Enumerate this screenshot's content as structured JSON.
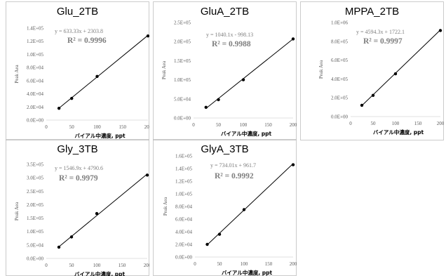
{
  "chart_data": [
    {
      "type": "scatter",
      "title": "Glu_2TB",
      "xlabel": "バイアル中濃度, ppt",
      "ylabel": "Peak Aea",
      "xlim": [
        0,
        200
      ],
      "ylim": [
        0,
        140000
      ],
      "x_ticks": [
        "0",
        "50",
        "100",
        "150",
        "200"
      ],
      "y_ticks": [
        "0.0E+00",
        "2.0E+04",
        "4.0E+04",
        "6.0E+04",
        "8.0E+04",
        "1.0E+05",
        "1.2E+05",
        "1.4E+05"
      ],
      "equation": "y = 633.33x + 2303.8",
      "r2_label": "R² = 0.9996",
      "trendline": {
        "slope": 633.33,
        "intercept": 2303.8
      },
      "series": [
        {
          "x": [
            25,
            50,
            100,
            200
          ],
          "y": [
            18000,
            33000,
            66500,
            128000
          ]
        }
      ]
    },
    {
      "type": "scatter",
      "title": "GluA_2TB",
      "xlabel": "バイアル中濃度, ppt",
      "ylabel": "Peak Aea",
      "xlim": [
        0,
        200
      ],
      "ylim": [
        0,
        250000
      ],
      "x_ticks": [
        "0",
        "50",
        "100",
        "150",
        "200"
      ],
      "y_ticks": [
        "0.0E+00",
        "5.0E+04",
        "1.0E+05",
        "1.5E+05",
        "2.0E+05",
        "2.5E+05"
      ],
      "equation": "y = 1040.1x - 998.13",
      "r2_label": "R² = 0.9988",
      "trendline": {
        "slope": 1040.1,
        "intercept": -998.13
      },
      "series": [
        {
          "x": [
            25,
            50,
            100,
            200
          ],
          "y": [
            28000,
            48000,
            100000,
            207000
          ]
        }
      ]
    },
    {
      "type": "scatter",
      "title": "MPPA_2TB",
      "xlabel": "バイアル中濃度, ppt",
      "ylabel": "Peak Aea",
      "xlim": [
        0,
        200
      ],
      "ylim": [
        0,
        1000000
      ],
      "x_ticks": [
        "0",
        "50",
        "100",
        "150",
        "200"
      ],
      "y_ticks": [
        "0.0E+00",
        "2.0E+05",
        "4.0E+05",
        "6.0E+05",
        "8.0E+05",
        "1.0E+06"
      ],
      "equation": "y = 4594.3x + 1722.1",
      "r2_label": "R² = 0.9997",
      "trendline": {
        "slope": 4594.3,
        "intercept": 1722.1
      },
      "series": [
        {
          "x": [
            25,
            50,
            100,
            200
          ],
          "y": [
            120000,
            225000,
            455000,
            915000
          ]
        }
      ]
    },
    {
      "type": "scatter",
      "title": "Gly_3TB",
      "xlabel": "バイアル中濃度, ppt",
      "ylabel": "Peak Aea",
      "xlim": [
        0,
        200
      ],
      "ylim": [
        0,
        350000
      ],
      "x_ticks": [
        "0",
        "50",
        "100",
        "150",
        "200"
      ],
      "y_ticks": [
        "0.0E+00",
        "5.0E+04",
        "1.0E+05",
        "1.5E+05",
        "2.0E+05",
        "2.5E+05",
        "3.0E+05",
        "3.5E+05"
      ],
      "equation": "y = 1546.9x + 4790.6",
      "r2_label": "R² = 0.9979",
      "trendline": {
        "slope": 1546.9,
        "intercept": 4790.6
      },
      "series": [
        {
          "x": [
            25,
            50,
            100,
            200
          ],
          "y": [
            42000,
            80000,
            167000,
            310000
          ]
        }
      ]
    },
    {
      "type": "scatter",
      "title": "GlyA_3TB",
      "xlabel": "バイアル中濃度, ppt",
      "ylabel": "Peak Aea",
      "xlim": [
        0,
        200
      ],
      "ylim": [
        0,
        160000
      ],
      "x_ticks": [
        "0",
        "50",
        "100",
        "150",
        "200"
      ],
      "y_ticks": [
        "0.0E+00",
        "2.0E+04",
        "4.0E+04",
        "6.0E+04",
        "8.0E+04",
        "1.0E+05",
        "1.2E+05",
        "1.4E+05",
        "1.6E+05"
      ],
      "equation": "y = 734.01x + 961.7",
      "r2_label": "R² = 0.9992",
      "trendline": {
        "slope": 734.01,
        "intercept": 961.7
      },
      "series": [
        {
          "x": [
            25,
            50,
            100,
            200
          ],
          "y": [
            20000,
            36000,
            75000,
            146000
          ]
        }
      ]
    }
  ]
}
